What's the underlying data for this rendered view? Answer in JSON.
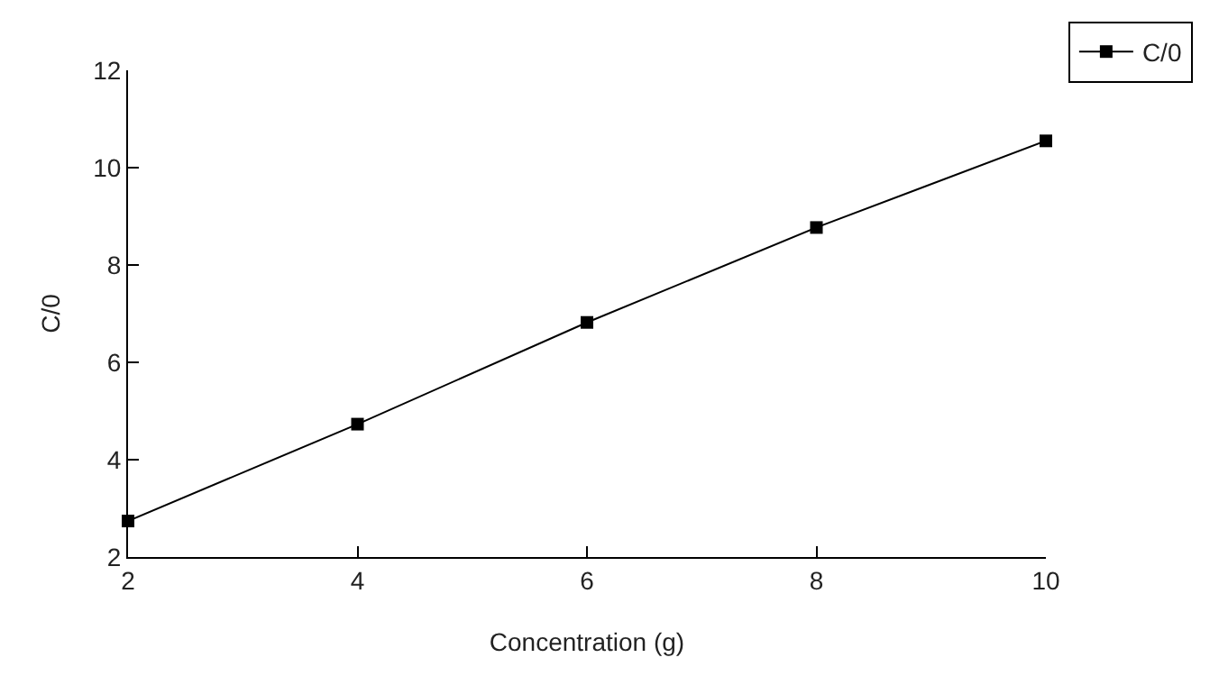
{
  "chart_data": {
    "type": "line",
    "xlabel": "Concentration (g)",
    "ylabel": "C/0",
    "x": [
      2,
      4,
      6,
      8,
      10
    ],
    "series": [
      {
        "name": "C/0",
        "color": "#000000",
        "values": [
          2.74,
          4.73,
          6.82,
          8.77,
          10.55
        ]
      }
    ],
    "xlim": [
      2,
      10
    ],
    "xticks": [
      2,
      4,
      6,
      8,
      10
    ],
    "ylim": [
      2,
      12
    ],
    "yticks": [
      2,
      4,
      6,
      8,
      10,
      12
    ],
    "grid": false,
    "legend": "top right",
    "marker": "square",
    "line_style": "solid"
  }
}
